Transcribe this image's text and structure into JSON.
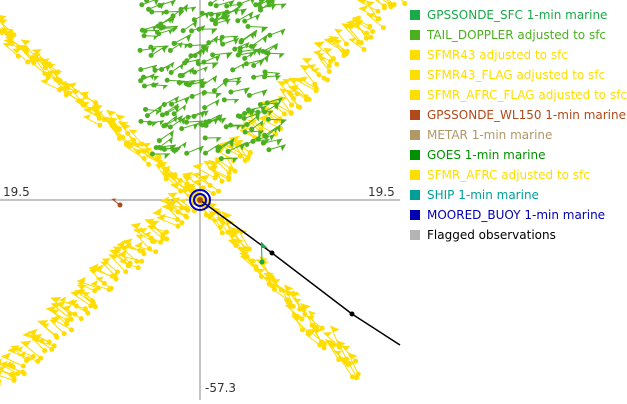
{
  "plot": {
    "axis_labels": {
      "left": "19.5",
      "right": "19.5",
      "bottom": "-57.3"
    },
    "colors": {
      "sfmr": "#ffdd00",
      "tail_doppler": "#4caf20",
      "center": "#0000cc",
      "track": "#000000"
    }
  },
  "legend": [
    {
      "label": "GPSSONDE_SFC 1-min marine",
      "color": "#1aaa4a"
    },
    {
      "label": "TAIL_DOPPLER adjusted to sfc",
      "color": "#4caf20"
    },
    {
      "label": "SFMR43 adjusted to sfc",
      "color": "#ffdd00"
    },
    {
      "label": "SFMR43_FLAG adjusted to sfc",
      "color": "#ffdd00"
    },
    {
      "label": "SFMR_AFRC_FLAG adjusted to sfc",
      "color": "#ffdd00"
    },
    {
      "label": "GPSSONDE_WL150 1-min marine",
      "color": "#b04a1a"
    },
    {
      "label": "METAR 1-min marine",
      "color": "#b09868"
    },
    {
      "label": "GOES 1-min marine",
      "color": "#009000"
    },
    {
      "label": "SFMR_AFRC adjusted to sfc",
      "color": "#ffdd00"
    },
    {
      "label": "SHIP 1-min marine",
      "color": "#00a098"
    },
    {
      "label": "MOORED_BUOY 1-min marine",
      "color": "#0000b0"
    },
    {
      "label": "Flagged observations",
      "color": "#b4b4b4",
      "text_color": "#000000"
    }
  ]
}
